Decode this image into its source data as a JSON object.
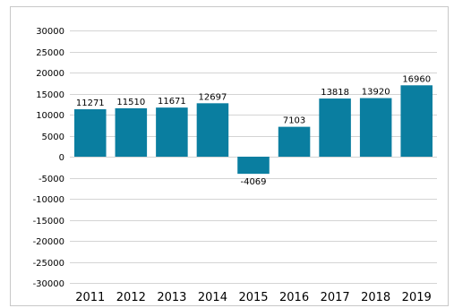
{
  "colors": {
    "bar": "#0a7ea0",
    "grid": "#d4d4d4",
    "frame": "#c8c8c8"
  },
  "chart_data": {
    "type": "bar",
    "title": "",
    "xlabel": "",
    "ylabel": "",
    "categories": [
      "2011",
      "2012",
      "2013",
      "2014",
      "2015",
      "2016",
      "2017",
      "2018",
      "2019"
    ],
    "values": [
      11271,
      11510,
      11671,
      12697,
      -4069,
      7103,
      13818,
      13920,
      16960
    ],
    "data_labels": [
      "11271",
      "11510",
      "11671",
      "12697",
      "-4069",
      "7103",
      "13818",
      "13920",
      "16960"
    ],
    "ylim": [
      -30000,
      30000
    ],
    "yticks": [
      30000,
      25000,
      20000,
      15000,
      10000,
      5000,
      0,
      -5000,
      -10000,
      -15000,
      -20000,
      -25000,
      -30000
    ],
    "ytick_labels": [
      "30000",
      "25000",
      "20000",
      "15000",
      "10000",
      "5000",
      "0",
      "-5000",
      "-10000",
      "-15000",
      "-20000",
      "-25000",
      "-30000"
    ],
    "grid": true,
    "legend": "none"
  }
}
